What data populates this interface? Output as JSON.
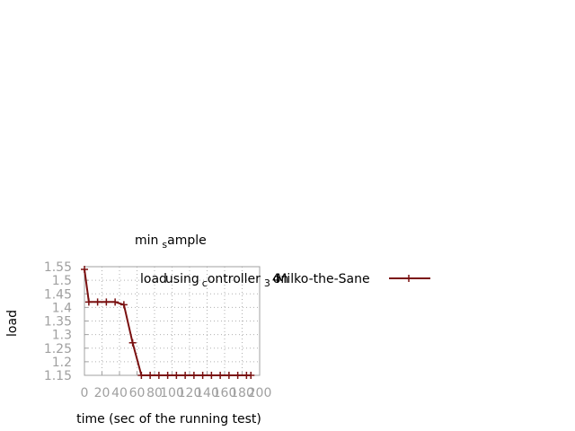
{
  "chart_data": {
    "type": "line",
    "title": "min",
    "title_sub": "s",
    "title_rest": "ample",
    "xlabel": "time (sec of the running test)",
    "ylabel": "load",
    "xlim": [
      0,
      200
    ],
    "ylim": [
      1.15,
      1.55
    ],
    "x_ticks": [
      0,
      20,
      40,
      60,
      80,
      100,
      120,
      140,
      160,
      180,
      200
    ],
    "y_ticks": [
      "1.15",
      "1.2",
      "1.25",
      "1.3",
      "1.35",
      "1.4",
      "1.45",
      "1.5",
      "1.55"
    ],
    "grid": true,
    "legend_position": "top-right",
    "series": [
      {
        "name": "load using controller 3 on Milko-the-Sane",
        "legend_parts": [
          "load",
          "using",
          "c",
          "ontroller",
          "3",
          "4",
          "on",
          "Milko-the-Sane"
        ],
        "color": "#7a1010",
        "x": [
          0,
          5,
          15,
          25,
          35,
          45,
          55,
          65,
          75,
          85,
          95,
          105,
          115,
          125,
          135,
          145,
          155,
          165,
          175,
          185,
          190
        ],
        "y": [
          1.54,
          1.42,
          1.42,
          1.42,
          1.42,
          1.41,
          1.27,
          1.15,
          1.15,
          1.15,
          1.15,
          1.15,
          1.15,
          1.15,
          1.15,
          1.15,
          1.15,
          1.15,
          1.15,
          1.15,
          1.15
        ]
      }
    ]
  }
}
